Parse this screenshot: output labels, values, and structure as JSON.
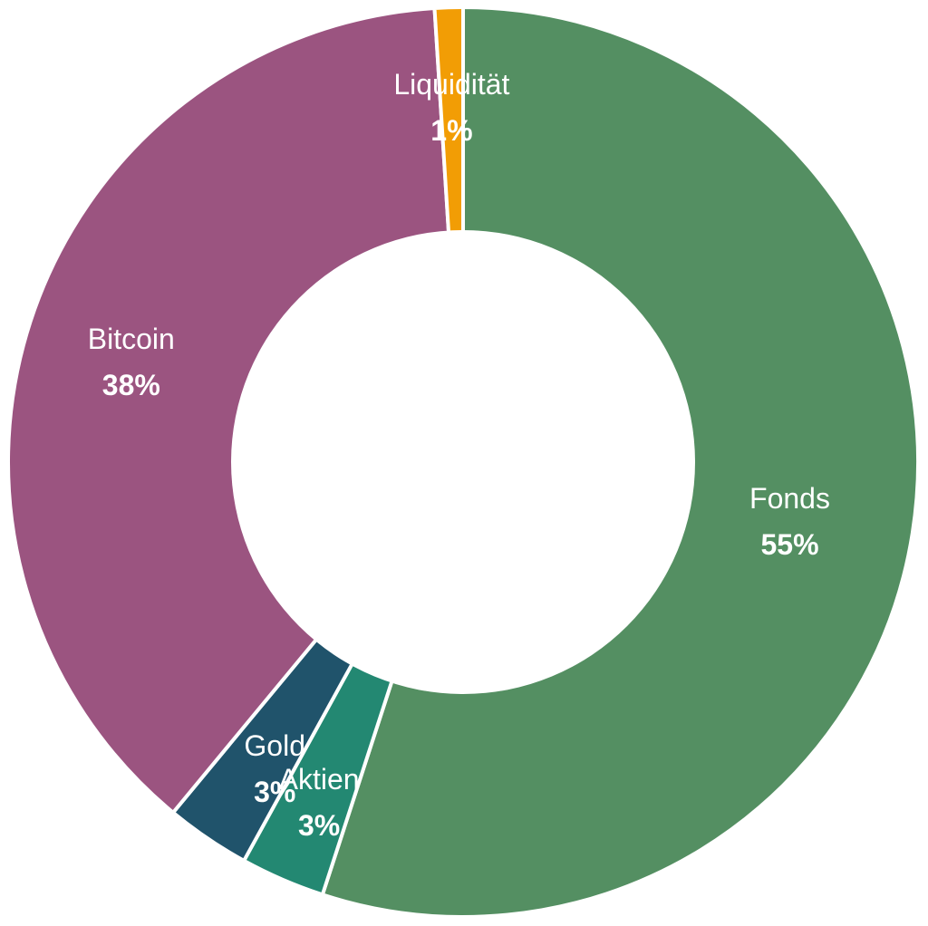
{
  "chart_data": {
    "type": "pie",
    "variant": "donut",
    "categories": [
      "Fonds",
      "Aktien",
      "Gold",
      "Bitcoin",
      "Liquidität"
    ],
    "values": [
      55,
      3,
      3,
      38,
      1
    ],
    "value_labels": [
      "55%",
      "3%",
      "3%",
      "38%",
      "1%"
    ],
    "colors": [
      "#548f62",
      "#238872",
      "#20536b",
      "#9b5480",
      "#f29d05"
    ],
    "title": "",
    "legend": "none",
    "data_labels": "inside slices (category name + bold percentage)"
  }
}
